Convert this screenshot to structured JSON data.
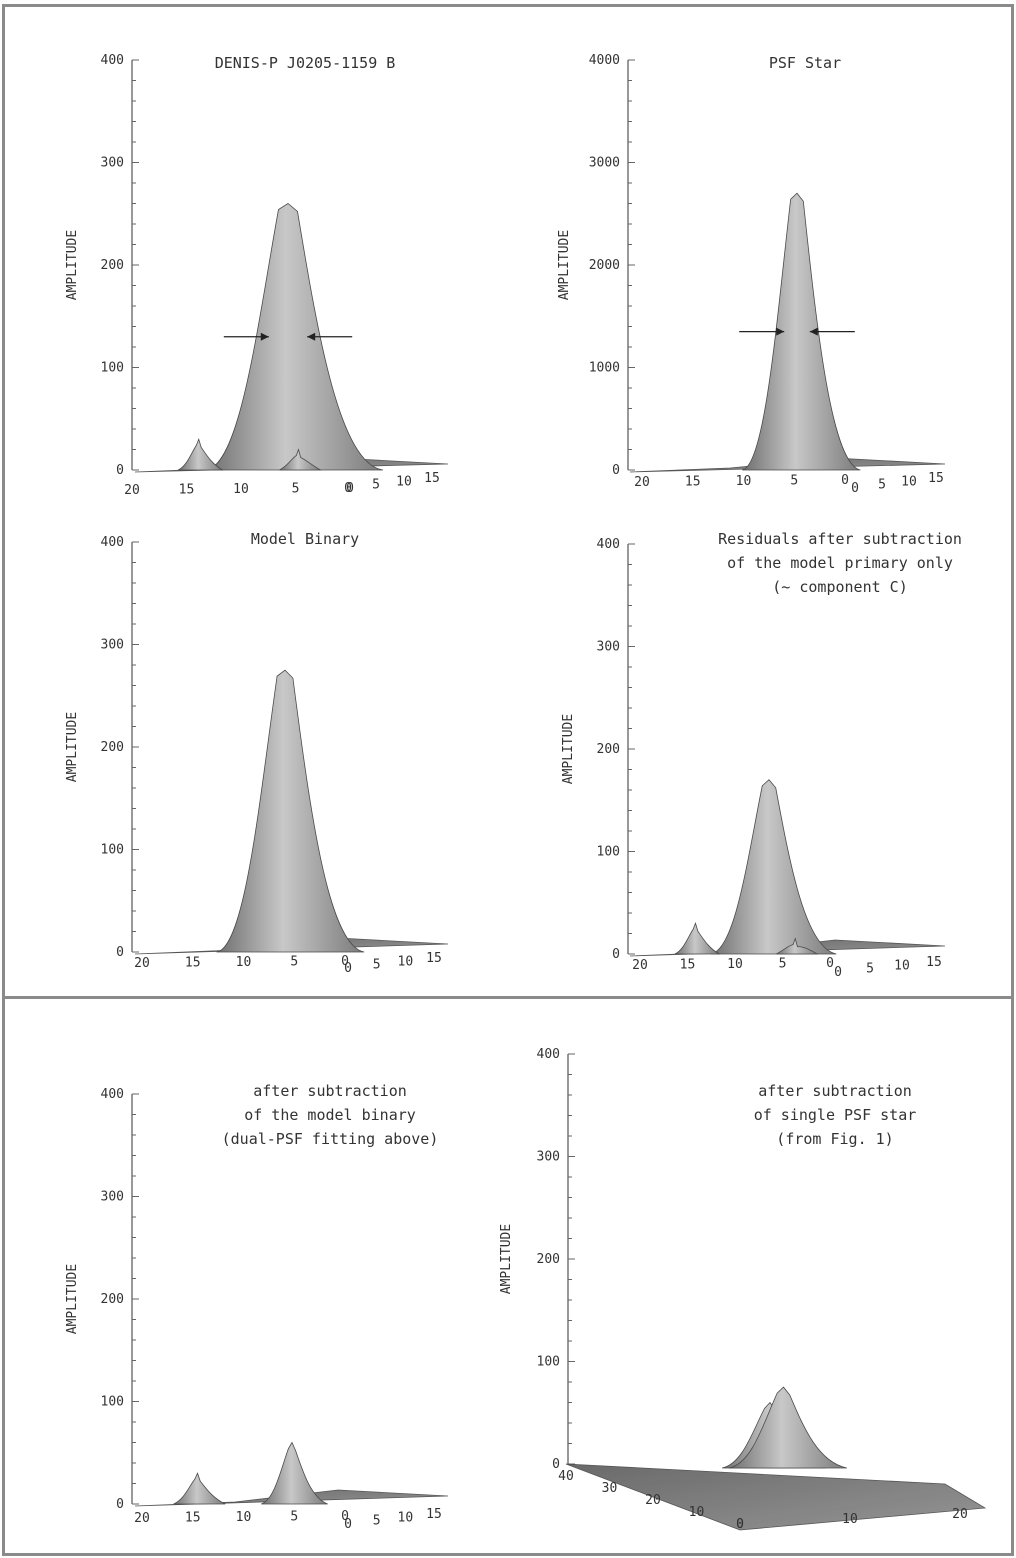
{
  "chart_data": [
    {
      "id": "p1",
      "type": "surface3d",
      "title_lines": [
        "DENIS-P J0205-1159 B"
      ],
      "ylabel": "AMPLITUDE",
      "zlim": [
        0,
        400
      ],
      "zticks": [
        "0",
        "100",
        "200",
        "300",
        "400"
      ],
      "x_ticks": [
        "20",
        "15",
        "10",
        "5",
        "0"
      ],
      "y_ticks": [
        "0",
        "5",
        "10",
        "15"
      ],
      "peaks": [
        {
          "x": 6,
          "y": 0,
          "amplitude": 260,
          "sigma": 2.4
        },
        {
          "x": 14.5,
          "y": 0,
          "amplitude": 30,
          "sigma": 0.6
        },
        {
          "x": 5,
          "y": 0,
          "amplitude": 20,
          "sigma": 0.5
        }
      ],
      "fwhm_arrows": true
    },
    {
      "id": "p2",
      "type": "surface3d",
      "title_lines": [
        "PSF Star"
      ],
      "ylabel": "AMPLITUDE",
      "zlim": [
        0,
        4000
      ],
      "zticks": [
        "0",
        "1000",
        "2000",
        "3000",
        "4000"
      ],
      "x_ticks": [
        "20",
        "15",
        "10",
        "5",
        "0"
      ],
      "y_ticks": [
        "0",
        "5",
        "10",
        "15"
      ],
      "peaks": [
        {
          "x": 7,
          "y": 0,
          "amplitude": 2700,
          "sigma": 1.6
        }
      ],
      "fwhm_arrows": true
    },
    {
      "id": "p3",
      "type": "surface3d",
      "title_lines": [
        "Model Binary"
      ],
      "ylabel": "AMPLITUDE",
      "zlim": [
        0,
        400
      ],
      "zticks": [
        "0",
        "100",
        "200",
        "300",
        "400"
      ],
      "x_ticks": [
        "20",
        "15",
        "10",
        "5",
        "0"
      ],
      "y_ticks": [
        "0",
        "5",
        "10",
        "15"
      ],
      "peaks": [
        {
          "x": 7,
          "y": 0,
          "amplitude": 275,
          "sigma": 2.0
        }
      ],
      "fwhm_arrows": false
    },
    {
      "id": "p4",
      "type": "surface3d",
      "title_lines": [
        "Residuals after subtraction",
        "of the model primary only",
        "(~ component C)"
      ],
      "ylabel": "AMPLITUDE",
      "zlim": [
        0,
        400
      ],
      "zticks": [
        "0",
        "100",
        "200",
        "300",
        "400"
      ],
      "x_ticks": [
        "20",
        "15",
        "10",
        "5",
        "0"
      ],
      "y_ticks": [
        "0",
        "5",
        "10",
        "15"
      ],
      "peaks": [
        {
          "x": 7.5,
          "y": 0,
          "amplitude": 170,
          "sigma": 1.7
        },
        {
          "x": 14.5,
          "y": 0,
          "amplitude": 30,
          "sigma": 0.6
        },
        {
          "x": 5,
          "y": 0,
          "amplitude": 15,
          "sigma": 0.5
        }
      ],
      "fwhm_arrows": false
    },
    {
      "id": "p5",
      "type": "surface3d",
      "title_lines": [
        "after subtraction",
        "of the model binary",
        "(dual-PSF fitting above)"
      ],
      "ylabel": "AMPLITUDE",
      "zlim": [
        0,
        400
      ],
      "zticks": [
        "0",
        "100",
        "200",
        "300",
        "400"
      ],
      "x_ticks": [
        "20",
        "15",
        "10",
        "5",
        "0"
      ],
      "y_ticks": [
        "0",
        "5",
        "10",
        "15"
      ],
      "peaks": [
        {
          "x": 5.5,
          "y": 0,
          "amplitude": 60,
          "sigma": 0.9
        },
        {
          "x": 14.5,
          "y": 0,
          "amplitude": 30,
          "sigma": 0.7
        }
      ],
      "fwhm_arrows": false
    },
    {
      "id": "p6",
      "type": "surface3d",
      "title_lines": [
        "after subtraction",
        "of  single PSF star",
        "(from Fig. 1)"
      ],
      "ylabel": "AMPLITUDE",
      "zlim": [
        0,
        400
      ],
      "zticks": [
        "0",
        "100",
        "200",
        "300",
        "400"
      ],
      "x_ticks": [
        "40",
        "30",
        "20",
        "10",
        "0"
      ],
      "y_ticks": [
        "0",
        "10",
        "20"
      ],
      "peaks": [
        {
          "x": 13,
          "y": 12,
          "amplitude": 60,
          "sigma": 1.4
        },
        {
          "x": 10,
          "y": 15,
          "amplitude": 75,
          "sigma": 1.6
        }
      ],
      "fwhm_arrows": false
    }
  ]
}
